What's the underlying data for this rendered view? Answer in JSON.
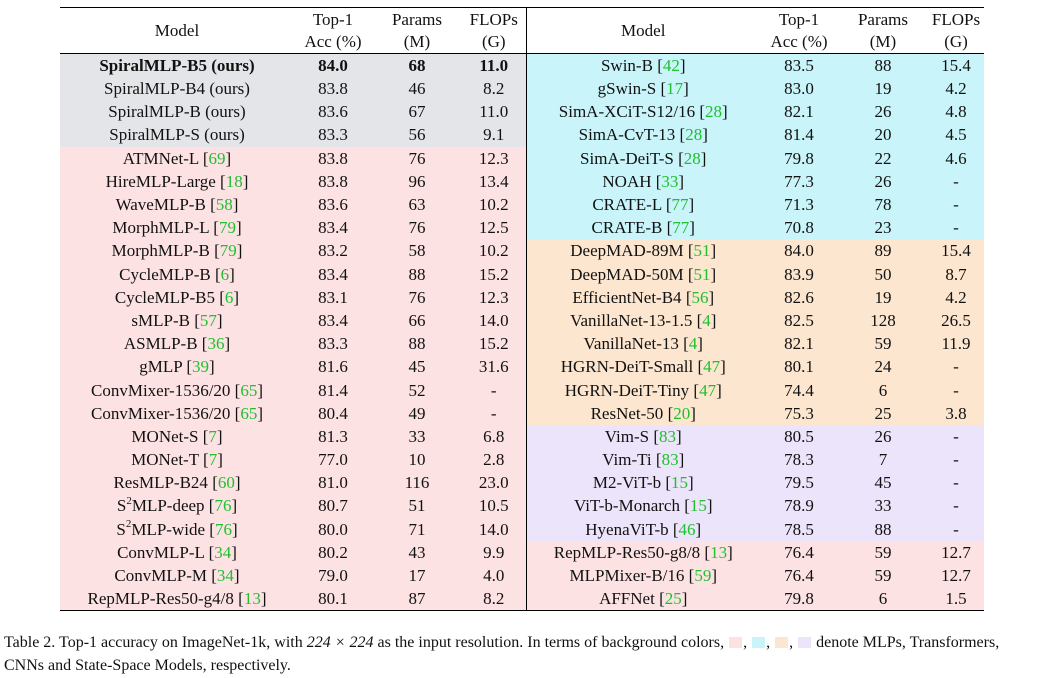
{
  "headers": {
    "model": "Model",
    "top1_line1": "Top-1",
    "top1_line2": "Acc (%)",
    "params_line1": "Params",
    "params_line2": "(M)",
    "flops_line1": "FLOPs",
    "flops_line2": "(G)"
  },
  "colors": {
    "mlp": "#fde2e4",
    "transformer": "#c9f5fa",
    "cnn": "#fce6cf",
    "ssm": "#ece4fa",
    "ours": "#e4e5e8",
    "citation": "#1fbf2e"
  },
  "rows": [
    {
      "left": {
        "model": "SpiralMLP-B5 (ours)",
        "ref": "",
        "acc": "84.0",
        "params": "68",
        "flops": "11.0",
        "cat": "ours",
        "bold": true
      },
      "right": {
        "model": "Swin-B",
        "ref": "42",
        "acc": "83.5",
        "params": "88",
        "flops": "15.4",
        "cat": "transformer"
      }
    },
    {
      "left": {
        "model": "SpiralMLP-B4 (ours)",
        "ref": "",
        "acc": "83.8",
        "params": "46",
        "flops": "8.2",
        "cat": "ours"
      },
      "right": {
        "model": "gSwin-S",
        "ref": "17",
        "acc": "83.0",
        "params": "19",
        "flops": "4.2",
        "cat": "transformer"
      }
    },
    {
      "left": {
        "model": "SpiralMLP-B (ours)",
        "ref": "",
        "acc": "83.6",
        "params": "67",
        "flops": "11.0",
        "cat": "ours"
      },
      "right": {
        "model": "SimA-XCiT-S12/16",
        "ref": "28",
        "acc": "82.1",
        "params": "26",
        "flops": "4.8",
        "cat": "transformer"
      }
    },
    {
      "left": {
        "model": "SpiralMLP-S (ours)",
        "ref": "",
        "acc": "83.3",
        "params": "56",
        "flops": "9.1",
        "cat": "ours"
      },
      "right": {
        "model": "SimA-CvT-13",
        "ref": "28",
        "acc": "81.4",
        "params": "20",
        "flops": "4.5",
        "cat": "transformer"
      }
    },
    {
      "left": {
        "model": "ATMNet-L",
        "ref": "69",
        "acc": "83.8",
        "params": "76",
        "flops": "12.3",
        "cat": "mlp"
      },
      "right": {
        "model": "SimA-DeiT-S",
        "ref": "28",
        "acc": "79.8",
        "params": "22",
        "flops": "4.6",
        "cat": "transformer"
      }
    },
    {
      "left": {
        "model": "HireMLP-Large",
        "ref": "18",
        "acc": "83.8",
        "params": "96",
        "flops": "13.4",
        "cat": "mlp"
      },
      "right": {
        "model": "NOAH",
        "ref": "33",
        "acc": "77.3",
        "params": "26",
        "flops": "-",
        "cat": "transformer"
      }
    },
    {
      "left": {
        "model": "WaveMLP-B",
        "ref": "58",
        "acc": "83.6",
        "params": "63",
        "flops": "10.2",
        "cat": "mlp"
      },
      "right": {
        "model": "CRATE-L",
        "ref": "77",
        "acc": "71.3",
        "params": "78",
        "flops": "-",
        "cat": "transformer"
      }
    },
    {
      "left": {
        "model": "MorphMLP-L",
        "ref": "79",
        "acc": "83.4",
        "params": "76",
        "flops": "12.5",
        "cat": "mlp"
      },
      "right": {
        "model": "CRATE-B",
        "ref": "77",
        "acc": "70.8",
        "params": "23",
        "flops": "-",
        "cat": "transformer"
      }
    },
    {
      "left": {
        "model": "MorphMLP-B",
        "ref": "79",
        "acc": "83.2",
        "params": "58",
        "flops": "10.2",
        "cat": "mlp"
      },
      "right": {
        "model": "DeepMAD-89M",
        "ref": "51",
        "acc": "84.0",
        "params": "89",
        "flops": "15.4",
        "cat": "cnn"
      }
    },
    {
      "left": {
        "model": "CycleMLP-B",
        "ref": "6",
        "acc": "83.4",
        "params": "88",
        "flops": "15.2",
        "cat": "mlp"
      },
      "right": {
        "model": "DeepMAD-50M",
        "ref": "51",
        "acc": "83.9",
        "params": "50",
        "flops": "8.7",
        "cat": "cnn"
      }
    },
    {
      "left": {
        "model": "CycleMLP-B5",
        "ref": "6",
        "acc": "83.1",
        "params": "76",
        "flops": "12.3",
        "cat": "mlp"
      },
      "right": {
        "model": "EfficientNet-B4",
        "ref": "56",
        "acc": "82.6",
        "params": "19",
        "flops": "4.2",
        "cat": "cnn"
      }
    },
    {
      "left": {
        "model": "sMLP-B",
        "ref": "57",
        "acc": "83.4",
        "params": "66",
        "flops": "14.0",
        "cat": "mlp"
      },
      "right": {
        "model": "VanillaNet-13-1.5",
        "ref": "4",
        "acc": "82.5",
        "params": "128",
        "flops": "26.5",
        "cat": "cnn"
      }
    },
    {
      "left": {
        "model": "ASMLP-B",
        "ref": "36",
        "acc": "83.3",
        "params": "88",
        "flops": "15.2",
        "cat": "mlp"
      },
      "right": {
        "model": "VanillaNet-13",
        "ref": "4",
        "acc": "82.1",
        "params": "59",
        "flops": "11.9",
        "cat": "cnn"
      }
    },
    {
      "left": {
        "model": "gMLP",
        "ref": "39",
        "acc": "81.6",
        "params": "45",
        "flops": "31.6",
        "cat": "mlp"
      },
      "right": {
        "model": "HGRN-DeiT-Small",
        "ref": "47",
        "acc": "80.1",
        "params": "24",
        "flops": "-",
        "cat": "cnn"
      }
    },
    {
      "left": {
        "model": "ConvMixer-1536/20",
        "ref": "65",
        "acc": "81.4",
        "params": "52",
        "flops": "-",
        "cat": "mlp"
      },
      "right": {
        "model": "HGRN-DeiT-Tiny",
        "ref": "47",
        "acc": "74.4",
        "params": "6",
        "flops": "-",
        "cat": "cnn"
      }
    },
    {
      "left": {
        "model": "ConvMixer-1536/20",
        "ref": "65",
        "acc": "80.4",
        "params": "49",
        "flops": "-",
        "cat": "mlp"
      },
      "right": {
        "model": "ResNet-50",
        "ref": "20",
        "acc": "75.3",
        "params": "25",
        "flops": "3.8",
        "cat": "cnn"
      }
    },
    {
      "left": {
        "model": "MONet-S",
        "ref": "7",
        "acc": "81.3",
        "params": "33",
        "flops": "6.8",
        "cat": "mlp"
      },
      "right": {
        "model": "Vim-S",
        "ref": "83",
        "acc": "80.5",
        "params": "26",
        "flops": "-",
        "cat": "ssm"
      }
    },
    {
      "left": {
        "model": "MONet-T",
        "ref": "7",
        "acc": "77.0",
        "params": "10",
        "flops": "2.8",
        "cat": "mlp"
      },
      "right": {
        "model": "Vim-Ti",
        "ref": "83",
        "acc": "78.3",
        "params": "7",
        "flops": "-",
        "cat": "ssm"
      }
    },
    {
      "left": {
        "model": "ResMLP-B24",
        "ref": "60",
        "acc": "81.0",
        "params": "116",
        "flops": "23.0",
        "cat": "mlp"
      },
      "right": {
        "model": "M2-ViT-b",
        "ref": "15",
        "acc": "79.5",
        "params": "45",
        "flops": "-",
        "cat": "ssm"
      }
    },
    {
      "left": {
        "model": "MLP-deep",
        "prefix": "S",
        "sup": "2",
        "ref": "76",
        "acc": "80.7",
        "params": "51",
        "flops": "10.5",
        "cat": "mlp"
      },
      "right": {
        "model": "ViT-b-Monarch",
        "ref": "15",
        "acc": "78.9",
        "params": "33",
        "flops": "-",
        "cat": "ssm"
      }
    },
    {
      "left": {
        "model": "MLP-wide",
        "prefix": "S",
        "sup": "2",
        "ref": "76",
        "acc": "80.0",
        "params": "71",
        "flops": "14.0",
        "cat": "mlp"
      },
      "right": {
        "model": "HyenaViT-b",
        "ref": "46",
        "acc": "78.5",
        "params": "88",
        "flops": "-",
        "cat": "ssm"
      }
    },
    {
      "left": {
        "model": "ConvMLP-L",
        "ref": "34",
        "acc": "80.2",
        "params": "43",
        "flops": "9.9",
        "cat": "mlp"
      },
      "right": {
        "model": "RepMLP-Res50-g8/8",
        "ref": "13",
        "acc": "76.4",
        "params": "59",
        "flops": "12.7",
        "cat": "mlp"
      }
    },
    {
      "left": {
        "model": "ConvMLP-M",
        "ref": "34",
        "acc": "79.0",
        "params": "17",
        "flops": "4.0",
        "cat": "mlp"
      },
      "right": {
        "model": "MLPMixer-B/16",
        "ref": "59",
        "acc": "76.4",
        "params": "59",
        "flops": "12.7",
        "cat": "mlp"
      }
    },
    {
      "left": {
        "model": "RepMLP-Res50-g4/8",
        "ref": "13",
        "acc": "80.1",
        "params": "87",
        "flops": "8.2",
        "cat": "mlp"
      },
      "right": {
        "model": "AFFNet",
        "ref": "25",
        "acc": "79.8",
        "params": "6",
        "flops": "1.5",
        "cat": "mlp"
      }
    }
  ],
  "caption": {
    "label": "Table 2.",
    "part1": "Top-1 accuracy on ImageNet-1k, with",
    "math": "224 × 224",
    "part2": "as the input resolution. In terms of background colors,",
    "part3": "denote MLPs, Transformers, CNNs and State-Space Models, respectively."
  }
}
